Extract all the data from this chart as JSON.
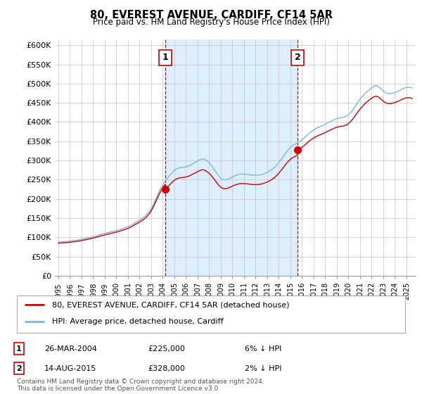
{
  "title": "80, EVEREST AVENUE, CARDIFF, CF14 5AR",
  "subtitle": "Price paid vs. HM Land Registry's House Price Index (HPI)",
  "ylabel_ticks": [
    "£0",
    "£50K",
    "£100K",
    "£150K",
    "£200K",
    "£250K",
    "£300K",
    "£350K",
    "£400K",
    "£450K",
    "£500K",
    "£550K",
    "£600K"
  ],
  "ytick_vals": [
    0,
    50000,
    100000,
    150000,
    200000,
    250000,
    300000,
    350000,
    400000,
    450000,
    500000,
    550000,
    600000
  ],
  "ylim": [
    0,
    615000
  ],
  "xlim_start": 1994.7,
  "xlim_end": 2025.8,
  "sale1_date": 2004.23,
  "sale1_price": 225000,
  "sale1_label": "1",
  "sale2_date": 2015.62,
  "sale2_price": 328000,
  "sale2_label": "2",
  "hpi_color": "#7ab8d9",
  "price_color": "#cc0000",
  "dashed_color": "#cc0000",
  "shade_color": "#ddeeff",
  "bg_color": "#ffffff",
  "grid_color": "#cccccc",
  "footnote": "Contains HM Land Registry data © Crown copyright and database right 2024.\nThis data is licensed under the Open Government Licence v3.0.",
  "legend1_text": "80, EVEREST AVENUE, CARDIFF, CF14 5AR (detached house)",
  "legend2_text": "HPI: Average price, detached house, Cardiff",
  "table_row1": [
    "1",
    "26-MAR-2004",
    "£225,000",
    "6% ↓ HPI"
  ],
  "table_row2": [
    "2",
    "14-AUG-2015",
    "£328,000",
    "2% ↓ HPI"
  ]
}
